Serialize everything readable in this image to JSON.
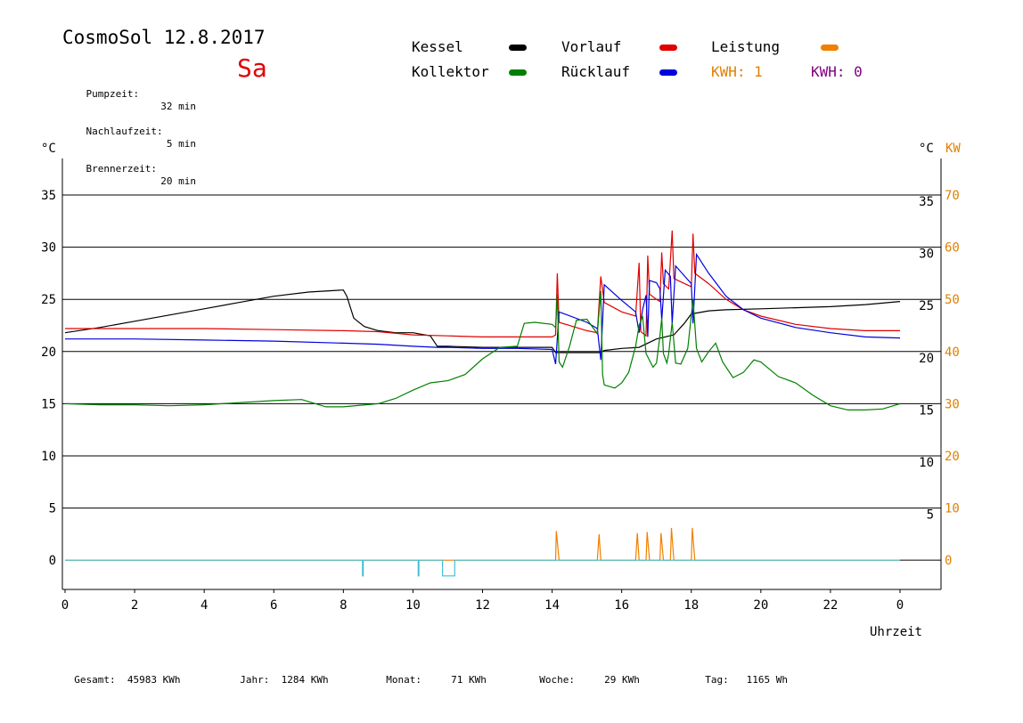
{
  "header": {
    "title": "CosmoSol 12.8.2017",
    "day": "Sa",
    "info": [
      {
        "label": "Pumpzeit:",
        "value": "32 min"
      },
      {
        "label": "Nachlaufzeit:",
        "value": "5 min"
      },
      {
        "label": "Brennerzeit:",
        "value": "20 min"
      }
    ]
  },
  "legend": [
    {
      "label": "Kessel",
      "color": "#000000",
      "text_color": "#000000"
    },
    {
      "label": "Vorlauf",
      "color": "#e00000",
      "text_color": "#000000"
    },
    {
      "label": "Leistung",
      "color": "#f08000",
      "text_color": "#000000"
    },
    {
      "label": "Kollektor",
      "color": "#008000",
      "text_color": "#000000"
    },
    {
      "label": "Rücklauf",
      "color": "#0000e0",
      "text_color": "#000000"
    },
    {
      "label": "KWH: 1",
      "color": "",
      "text_color": "#e08000"
    },
    {
      "label": "KWH: 0",
      "color": "",
      "text_color": "#800080"
    }
  ],
  "footer": [
    {
      "label": "Gesamt:",
      "value": "45983 KWh"
    },
    {
      "label": "Jahr:",
      "value": "1284 KWh"
    },
    {
      "label": "Monat:",
      "value": "71 KWh"
    },
    {
      "label": "Woche:",
      "value": "29 KWh"
    },
    {
      "label": "Tag:",
      "value": "1165 Wh"
    }
  ],
  "chart_data": {
    "type": "line",
    "xlabel": "Uhrzeit",
    "y_left_unit": "°C",
    "y_right_unit": "°C",
    "y_right2_unit": "KW",
    "x_ticks": [
      "0",
      "2",
      "4",
      "6",
      "8",
      "10",
      "12",
      "14",
      "16",
      "18",
      "20",
      "22",
      "0"
    ],
    "x_range": [
      0,
      24
    ],
    "y_ticks_left": [
      "0",
      "5",
      "10",
      "15",
      "20",
      "25",
      "30",
      "35"
    ],
    "y_ticks_right": [
      "5",
      "10",
      "15",
      "20",
      "25",
      "30",
      "35"
    ],
    "y_ticks_kw": [
      "0",
      "10",
      "20",
      "30",
      "40",
      "50",
      "60",
      "70"
    ],
    "ylim": [
      -2.8,
      38.5
    ],
    "grid": true,
    "series": [
      {
        "name": "Kessel",
        "color": "#000000",
        "points": [
          [
            0,
            21.8
          ],
          [
            1,
            22.3
          ],
          [
            2,
            22.9
          ],
          [
            3,
            23.5
          ],
          [
            4,
            24.1
          ],
          [
            5,
            24.7
          ],
          [
            6,
            25.3
          ],
          [
            7,
            25.7
          ],
          [
            8,
            25.9
          ],
          [
            8.1,
            25.3
          ],
          [
            8.3,
            23.2
          ],
          [
            8.6,
            22.4
          ],
          [
            9,
            22
          ],
          [
            9.5,
            21.8
          ],
          [
            10,
            21.8
          ],
          [
            10.5,
            21.5
          ],
          [
            10.7,
            20.5
          ],
          [
            11,
            20.5
          ],
          [
            12,
            20.4
          ],
          [
            13,
            20.4
          ],
          [
            14,
            20.4
          ],
          [
            14.1,
            19.9
          ],
          [
            14.3,
            19.9
          ],
          [
            15,
            19.9
          ],
          [
            15.4,
            19.9
          ],
          [
            15.5,
            20.1
          ],
          [
            16,
            20.3
          ],
          [
            16.5,
            20.4
          ],
          [
            17,
            21.2
          ],
          [
            17.5,
            21.6
          ],
          [
            17.8,
            22.7
          ],
          [
            18,
            23.6
          ],
          [
            18.5,
            23.9
          ],
          [
            19,
            24
          ],
          [
            20,
            24.1
          ],
          [
            21,
            24.2
          ],
          [
            22,
            24.3
          ],
          [
            23,
            24.5
          ],
          [
            24,
            24.8
          ]
        ]
      },
      {
        "name": "Vorlauf",
        "color": "#e00000",
        "points": [
          [
            0,
            22.2
          ],
          [
            2,
            22.2
          ],
          [
            4,
            22.2
          ],
          [
            6,
            22.1
          ],
          [
            8,
            22.0
          ],
          [
            9,
            21.9
          ],
          [
            10,
            21.6
          ],
          [
            11,
            21.5
          ],
          [
            12,
            21.4
          ],
          [
            13,
            21.4
          ],
          [
            14,
            21.4
          ],
          [
            14.1,
            21.6
          ],
          [
            14.15,
            27.5
          ],
          [
            14.2,
            22.8
          ],
          [
            15,
            22
          ],
          [
            15.3,
            21.8
          ],
          [
            15.4,
            27.2
          ],
          [
            15.5,
            24.7
          ],
          [
            16,
            23.8
          ],
          [
            16.4,
            23.4
          ],
          [
            16.5,
            28.5
          ],
          [
            16.55,
            21.9
          ],
          [
            16.7,
            21.5
          ],
          [
            16.75,
            29.2
          ],
          [
            16.8,
            25.5
          ],
          [
            17,
            25
          ],
          [
            17.1,
            24.8
          ],
          [
            17.15,
            29.5
          ],
          [
            17.2,
            26.5
          ],
          [
            17.35,
            26
          ],
          [
            17.45,
            31.6
          ],
          [
            17.5,
            27
          ],
          [
            18,
            26.2
          ],
          [
            18.05,
            31.3
          ],
          [
            18.1,
            27.5
          ],
          [
            18.5,
            26.5
          ],
          [
            19,
            25
          ],
          [
            19.5,
            24
          ],
          [
            20,
            23.4
          ],
          [
            21,
            22.6
          ],
          [
            22,
            22.2
          ],
          [
            23,
            22.0
          ],
          [
            24,
            22.0
          ]
        ]
      },
      {
        "name": "Rücklauf",
        "color": "#0000e0",
        "points": [
          [
            0,
            21.2
          ],
          [
            2,
            21.2
          ],
          [
            4,
            21.1
          ],
          [
            6,
            21
          ],
          [
            8,
            20.8
          ],
          [
            9,
            20.7
          ],
          [
            10,
            20.5
          ],
          [
            10.7,
            20.4
          ],
          [
            11,
            20.4
          ],
          [
            12,
            20.3
          ],
          [
            13,
            20.3
          ],
          [
            14,
            20.2
          ],
          [
            14.1,
            18.8
          ],
          [
            14.2,
            23.8
          ],
          [
            15,
            22.8
          ],
          [
            15.3,
            22.2
          ],
          [
            15.4,
            19.2
          ],
          [
            15.5,
            26.4
          ],
          [
            16,
            24.9
          ],
          [
            16.4,
            23.8
          ],
          [
            16.5,
            21.8
          ],
          [
            16.6,
            24
          ],
          [
            16.7,
            25.4
          ],
          [
            16.75,
            21.4
          ],
          [
            16.8,
            26.8
          ],
          [
            17,
            26.6
          ],
          [
            17.1,
            26
          ],
          [
            17.15,
            23
          ],
          [
            17.25,
            27.8
          ],
          [
            17.4,
            27.2
          ],
          [
            17.45,
            22.7
          ],
          [
            17.55,
            28.2
          ],
          [
            18,
            26.5
          ],
          [
            18.05,
            22.7
          ],
          [
            18.15,
            29.3
          ],
          [
            18.5,
            27.5
          ],
          [
            19,
            25.3
          ],
          [
            19.5,
            24
          ],
          [
            20,
            23.2
          ],
          [
            21,
            22.3
          ],
          [
            22,
            21.8
          ],
          [
            23,
            21.4
          ],
          [
            24,
            21.3
          ]
        ]
      },
      {
        "name": "Kollektor",
        "color": "#008000",
        "points": [
          [
            0,
            15
          ],
          [
            1,
            14.9
          ],
          [
            2,
            14.9
          ],
          [
            3,
            14.8
          ],
          [
            4,
            14.9
          ],
          [
            5,
            15.1
          ],
          [
            6,
            15.3
          ],
          [
            6.8,
            15.4
          ],
          [
            7,
            15.2
          ],
          [
            7.5,
            14.7
          ],
          [
            8,
            14.7
          ],
          [
            9,
            15
          ],
          [
            9.5,
            15.5
          ],
          [
            10,
            16.3
          ],
          [
            10.5,
            17
          ],
          [
            11,
            17.2
          ],
          [
            11.5,
            17.8
          ],
          [
            12,
            19.3
          ],
          [
            12.5,
            20.4
          ],
          [
            13,
            20.5
          ],
          [
            13.2,
            22.7
          ],
          [
            13.5,
            22.8
          ],
          [
            14,
            22.6
          ],
          [
            14.1,
            22.3
          ],
          [
            14.15,
            25.5
          ],
          [
            14.2,
            19
          ],
          [
            14.3,
            18.5
          ],
          [
            14.5,
            20.5
          ],
          [
            14.7,
            23
          ],
          [
            15,
            23.1
          ],
          [
            15.3,
            21.7
          ],
          [
            15.4,
            25.8
          ],
          [
            15.45,
            17.8
          ],
          [
            15.5,
            16.8
          ],
          [
            15.8,
            16.5
          ],
          [
            16,
            17
          ],
          [
            16.2,
            18
          ],
          [
            16.4,
            20.5
          ],
          [
            16.5,
            22.5
          ],
          [
            16.6,
            23.4
          ],
          [
            16.7,
            19.8
          ],
          [
            16.9,
            18.5
          ],
          [
            17,
            18.9
          ],
          [
            17.1,
            21.5
          ],
          [
            17.15,
            23.2
          ],
          [
            17.2,
            19.8
          ],
          [
            17.3,
            18.9
          ],
          [
            17.35,
            19.8
          ],
          [
            17.45,
            22.8
          ],
          [
            17.55,
            18.9
          ],
          [
            17.7,
            18.8
          ],
          [
            17.9,
            20.3
          ],
          [
            18.05,
            25
          ],
          [
            18.15,
            20.3
          ],
          [
            18.3,
            19
          ],
          [
            18.5,
            20
          ],
          [
            18.7,
            20.8
          ],
          [
            18.9,
            19
          ],
          [
            19.2,
            17.5
          ],
          [
            19.5,
            18
          ],
          [
            19.8,
            19.2
          ],
          [
            20,
            19
          ],
          [
            20.5,
            17.6
          ],
          [
            21,
            17
          ],
          [
            21.5,
            15.8
          ],
          [
            22,
            14.8
          ],
          [
            22.5,
            14.4
          ],
          [
            23,
            14.4
          ],
          [
            23.5,
            14.5
          ],
          [
            24,
            15
          ]
        ]
      },
      {
        "name": "Leistung",
        "color": "#f08000",
        "points": [
          [
            0,
            0
          ],
          [
            14.1,
            0
          ],
          [
            14.12,
            2.8
          ],
          [
            14.2,
            0
          ],
          [
            15.3,
            0
          ],
          [
            15.35,
            2.5
          ],
          [
            15.4,
            0
          ],
          [
            16.4,
            0
          ],
          [
            16.45,
            2.6
          ],
          [
            16.5,
            0
          ],
          [
            16.7,
            0
          ],
          [
            16.73,
            2.7
          ],
          [
            16.8,
            0
          ],
          [
            17.1,
            0
          ],
          [
            17.13,
            2.6
          ],
          [
            17.2,
            0
          ],
          [
            17.4,
            0
          ],
          [
            17.43,
            3.1
          ],
          [
            17.5,
            0
          ],
          [
            18,
            0
          ],
          [
            18.03,
            3.1
          ],
          [
            18.1,
            0
          ],
          [
            24,
            0
          ]
        ]
      },
      {
        "name": "Pumpe",
        "color": "#40c0d0",
        "points": [
          [
            0,
            0
          ],
          [
            8.55,
            0
          ],
          [
            8.55,
            -1.5
          ],
          [
            8.57,
            -1.5
          ],
          [
            8.57,
            0
          ],
          [
            10.15,
            0
          ],
          [
            10.15,
            -1.5
          ],
          [
            10.17,
            -1.5
          ],
          [
            10.17,
            0
          ],
          [
            10.85,
            0
          ],
          [
            10.85,
            -1.5
          ],
          [
            11.2,
            -1.5
          ],
          [
            11.2,
            0
          ],
          [
            24,
            0
          ]
        ]
      }
    ]
  }
}
